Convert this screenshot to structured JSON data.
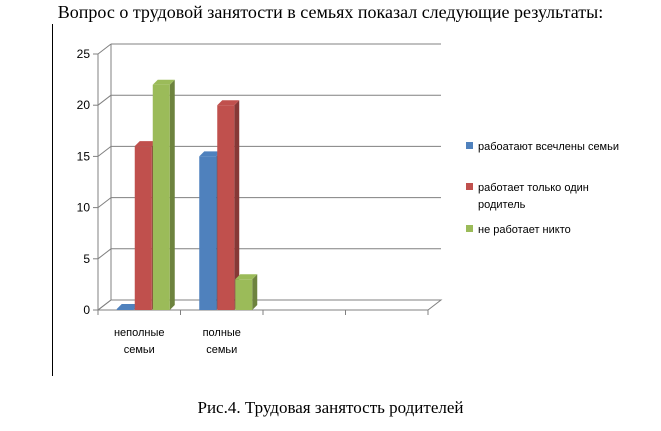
{
  "heading": "Вопрос о трудовой занятости в семьях показал следующие результаты:",
  "caption": "Рис.4. Трудовая занятость родителей",
  "chart_data": {
    "type": "bar",
    "categories": [
      [
        "неполные",
        "семьи"
      ],
      [
        "полные",
        "семьи"
      ],
      "",
      ""
    ],
    "series": [
      {
        "name": "рабоатают всечлены семьи",
        "values": [
          0,
          15,
          null,
          null
        ],
        "color": "#4f81bd"
      },
      {
        "name": "работает только один родитель",
        "values": [
          16,
          20,
          null,
          null
        ],
        "color": "#c0504d"
      },
      {
        "name": "не работает никто",
        "values": [
          22,
          3,
          null,
          null
        ],
        "color": "#9bbb59"
      }
    ],
    "ylim": [
      0,
      25
    ],
    "yticks": [
      0,
      5,
      10,
      15,
      20,
      25
    ],
    "grid": true,
    "legend": "right",
    "legend_lines": [
      [
        "рабоатают всечлены семьи"
      ],
      [
        "работает только один",
        "родитель"
      ],
      [
        "не работает никто"
      ]
    ]
  }
}
